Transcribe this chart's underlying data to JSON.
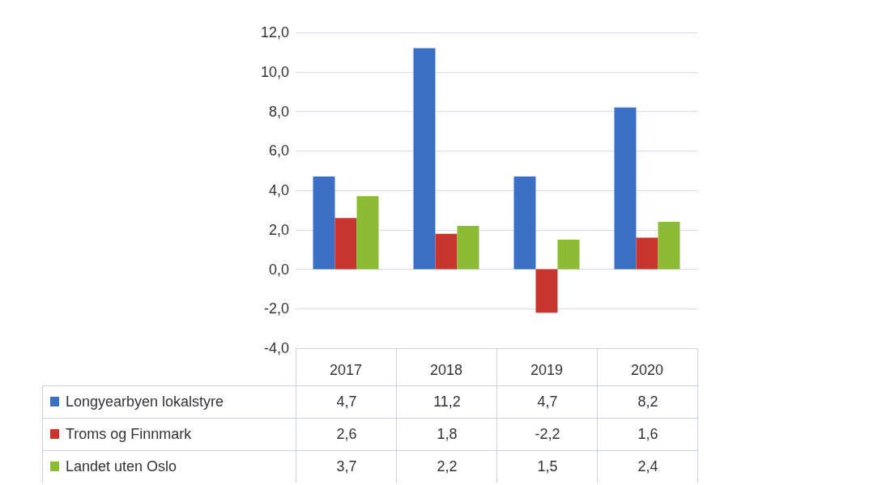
{
  "chart_data": {
    "type": "bar",
    "categories": [
      "2017",
      "2018",
      "2019",
      "2020"
    ],
    "series": [
      {
        "name": "Longyearbyen lokalstyre",
        "color": "#3b6fc4",
        "values": [
          4.7,
          11.2,
          4.7,
          8.2
        ],
        "value_labels": [
          "4,7",
          "11,2",
          "4,7",
          "8,2"
        ]
      },
      {
        "name": "Troms og Finnmark",
        "color": "#c8352e",
        "values": [
          2.6,
          1.8,
          -2.2,
          1.6
        ],
        "value_labels": [
          "2,6",
          "1,8",
          "-2,2",
          "1,6"
        ]
      },
      {
        "name": "Landet uten Oslo",
        "color": "#8cbb34",
        "values": [
          3.7,
          2.2,
          1.5,
          2.4
        ],
        "value_labels": [
          "3,7",
          "2,2",
          "1,5",
          "2,4"
        ]
      }
    ],
    "ylim": [
      -4,
      12
    ],
    "yticks": [
      {
        "value": -4,
        "label": "-4,0"
      },
      {
        "value": -2,
        "label": "-2,0"
      },
      {
        "value": 0,
        "label": "0,0"
      },
      {
        "value": 2,
        "label": "2,0"
      },
      {
        "value": 4,
        "label": "4,0"
      },
      {
        "value": 6,
        "label": "6,0"
      },
      {
        "value": 8,
        "label": "8,0"
      },
      {
        "value": 10,
        "label": "10,0"
      },
      {
        "value": 12,
        "label": "12,0"
      }
    ],
    "grid": "y",
    "legend": "bottom left"
  }
}
